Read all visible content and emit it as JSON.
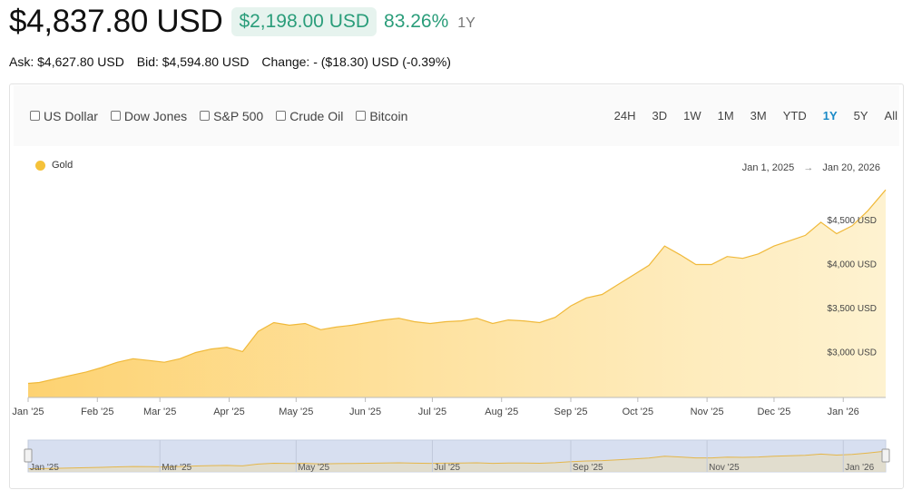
{
  "header": {
    "price": "$4,837.80 USD",
    "change": "$2,198.00 USD",
    "change_pct": "83.26%",
    "period": "1Y"
  },
  "quotes": {
    "ask": "Ask: $4,627.80 USD",
    "bid": "Bid: $4,594.80 USD",
    "change": "Change: - ($18.30) USD (-0.39%)"
  },
  "compare": [
    {
      "label": "US Dollar",
      "checked": false
    },
    {
      "label": "Dow Jones",
      "checked": false
    },
    {
      "label": "S&P 500",
      "checked": false
    },
    {
      "label": "Crude Oil",
      "checked": false
    },
    {
      "label": "Bitcoin",
      "checked": false
    }
  ],
  "ranges": [
    "24H",
    "3D",
    "1W",
    "1M",
    "3M",
    "YTD",
    "1Y",
    "5Y",
    "All"
  ],
  "active_range": "1Y",
  "colors": {
    "series": "#f5c23a",
    "accent_green": "#2a9d7a",
    "active_range": "#1a8ac7"
  },
  "chart_data": {
    "type": "area",
    "legend": "Gold",
    "legend_position": "top-left",
    "date_from": "Jan 1, 2025",
    "date_to": "Jan 20, 2026",
    "y_ticks": [
      {
        "value": 3000,
        "label": "$3,000 USD"
      },
      {
        "value": 3500,
        "label": "$3,500 USD"
      },
      {
        "value": 4000,
        "label": "$4,000 USD"
      },
      {
        "value": 4500,
        "label": "$4,500 USD"
      }
    ],
    "ylim": [
      2480,
      4850
    ],
    "x_ticks": [
      "Jan '25",
      "Feb '25",
      "Mar '25",
      "Apr '25",
      "May '25",
      "Jun '25",
      "Jul '25",
      "Aug '25",
      "Sep '25",
      "Oct '25",
      "Nov '25",
      "Dec '25",
      "Jan '26"
    ],
    "navigator_ticks": [
      "Jan '25",
      "Mar '25",
      "May '25",
      "Jul '25",
      "Sep '25",
      "Nov '25",
      "Jan '26"
    ],
    "grid": false,
    "series": [
      {
        "name": "Gold",
        "x": [
          "2025-01-01",
          "2025-01-06",
          "2025-01-13",
          "2025-01-20",
          "2025-01-27",
          "2025-02-03",
          "2025-02-10",
          "2025-02-17",
          "2025-02-24",
          "2025-03-03",
          "2025-03-10",
          "2025-03-17",
          "2025-03-24",
          "2025-03-31",
          "2025-04-07",
          "2025-04-14",
          "2025-04-21",
          "2025-04-28",
          "2025-05-05",
          "2025-05-12",
          "2025-05-19",
          "2025-05-26",
          "2025-06-02",
          "2025-06-09",
          "2025-06-16",
          "2025-06-23",
          "2025-06-30",
          "2025-07-07",
          "2025-07-14",
          "2025-07-21",
          "2025-07-28",
          "2025-08-04",
          "2025-08-11",
          "2025-08-18",
          "2025-08-25",
          "2025-09-01",
          "2025-09-08",
          "2025-09-15",
          "2025-09-22",
          "2025-09-29",
          "2025-10-06",
          "2025-10-13",
          "2025-10-20",
          "2025-10-27",
          "2025-11-03",
          "2025-11-10",
          "2025-11-17",
          "2025-11-24",
          "2025-12-01",
          "2025-12-08",
          "2025-12-15",
          "2025-12-22",
          "2025-12-29",
          "2026-01-05",
          "2026-01-12",
          "2026-01-20"
        ],
        "y": [
          2640,
          2650,
          2690,
          2730,
          2770,
          2820,
          2880,
          2920,
          2900,
          2880,
          2920,
          2990,
          3030,
          3050,
          3000,
          3230,
          3330,
          3300,
          3320,
          3250,
          3280,
          3300,
          3330,
          3360,
          3380,
          3340,
          3320,
          3340,
          3350,
          3380,
          3320,
          3360,
          3350,
          3330,
          3390,
          3520,
          3610,
          3650,
          3760,
          3870,
          3980,
          4200,
          4100,
          3990,
          3990,
          4080,
          4060,
          4110,
          4200,
          4260,
          4320,
          4470,
          4340,
          4430,
          4600,
          4838
        ]
      }
    ]
  }
}
